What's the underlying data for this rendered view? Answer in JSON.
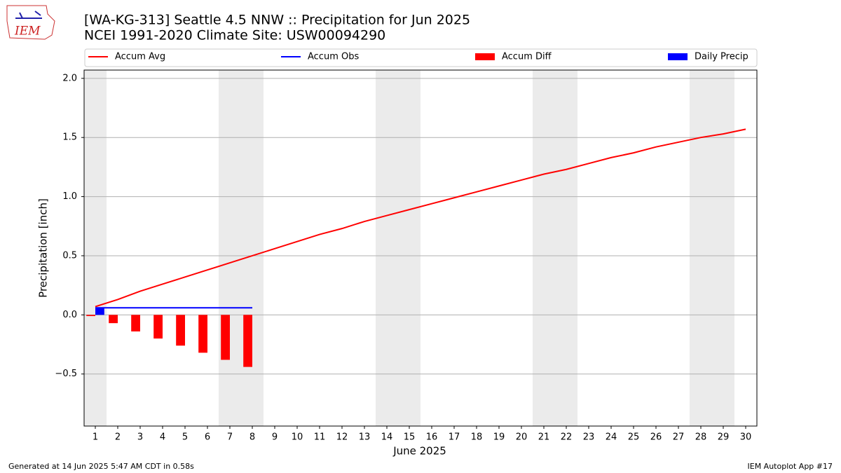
{
  "logo_text": "IEM",
  "footer_left": "Generated at 14 Jun 2025 5:47 AM CDT in 0.58s",
  "footer_right": "IEM Autoplot App #17",
  "chart_data": {
    "type": "combo",
    "title": "[WA-KG-313] Seattle 4.5 NNW :: Precipitation for Jun 2025",
    "subtitle": "NCEI 1991-2020 Climate Site: USW00094290",
    "xlabel": "June 2025",
    "ylabel": "Precipitation [inch]",
    "x": [
      1,
      2,
      3,
      4,
      5,
      6,
      7,
      8,
      9,
      10,
      11,
      12,
      13,
      14,
      15,
      16,
      17,
      18,
      19,
      20,
      21,
      22,
      23,
      24,
      25,
      26,
      27,
      28,
      29,
      30
    ],
    "xlim": [
      0.5,
      30.5
    ],
    "xticks": [
      1,
      2,
      3,
      4,
      5,
      6,
      7,
      8,
      9,
      10,
      11,
      12,
      13,
      14,
      15,
      16,
      17,
      18,
      19,
      20,
      21,
      22,
      23,
      24,
      25,
      26,
      27,
      28,
      29,
      30
    ],
    "ylim": [
      -0.94,
      2.07
    ],
    "yticks": [
      {
        "value": -0.5,
        "label": "−0.5"
      },
      {
        "value": 0,
        "label": "0.0"
      },
      0.5,
      {
        "value": 1,
        "label": "1.0"
      },
      1.5,
      {
        "value": 2,
        "label": "2.0"
      }
    ],
    "grid": true,
    "series": [
      {
        "name": "Accum Avg",
        "kind": "line",
        "color": "#ff0000",
        "values": [
          0.07,
          0.13,
          0.2,
          0.26,
          0.32,
          0.38,
          0.44,
          0.5,
          0.56,
          0.62,
          0.68,
          0.73,
          0.79,
          0.84,
          0.89,
          0.94,
          0.99,
          1.04,
          1.09,
          1.14,
          1.19,
          1.23,
          1.28,
          1.33,
          1.37,
          1.42,
          1.46,
          1.5,
          1.53,
          1.57
        ]
      },
      {
        "name": "Accum Obs",
        "kind": "line",
        "color": "#0000ff",
        "values": [
          0.06,
          0.06,
          0.06,
          0.06,
          0.06,
          0.06,
          0.06,
          0.06,
          null,
          null,
          null,
          null,
          null,
          null,
          null,
          null,
          null,
          null,
          null,
          null,
          null,
          null,
          null,
          null,
          null,
          null,
          null,
          null,
          null,
          null
        ]
      },
      {
        "name": "Accum Diff",
        "kind": "bar",
        "color": "#ff0000",
        "values": [
          -0.01,
          -0.07,
          -0.14,
          -0.2,
          -0.26,
          -0.32,
          -0.38,
          -0.44,
          null,
          null,
          null,
          null,
          null,
          null,
          null,
          null,
          null,
          null,
          null,
          null,
          null,
          null,
          null,
          null,
          null,
          null,
          null,
          null,
          null,
          null
        ]
      },
      {
        "name": "Daily Precip",
        "kind": "bar",
        "color": "#0000ff",
        "values": [
          0.06,
          0,
          0,
          0,
          0,
          0,
          0,
          0,
          null,
          null,
          null,
          null,
          null,
          null,
          null,
          null,
          null,
          null,
          null,
          null,
          null,
          null,
          null,
          null,
          null,
          null,
          null,
          null,
          null,
          null
        ]
      }
    ]
  }
}
